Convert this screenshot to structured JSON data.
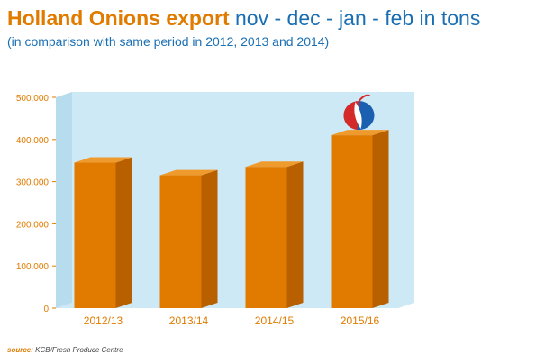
{
  "header": {
    "title_bold": "Holland Onions export",
    "title_rest": "nov - dec - jan - feb in tons",
    "subtitle": "(in comparison with same period in 2012, 2013 and 2014)"
  },
  "source": {
    "label": "source:",
    "text": "KCB/Fresh Produce Centre"
  },
  "colors": {
    "bar_front": "#e07b00",
    "bar_side": "#b85f00",
    "bar_top": "#ef9a2c",
    "plot_bg": "#cde9f6",
    "axis_text": "#e07b00",
    "title_orange": "#e07b00",
    "title_blue": "#1a6fb3"
  },
  "icons": {
    "peak_marker": "onion-icon"
  },
  "chart_data": {
    "type": "bar",
    "categories": [
      "2012/13",
      "2013/14",
      "2014/15",
      "2015/16"
    ],
    "values": [
      345000,
      315000,
      335000,
      410000
    ],
    "ylim": [
      0,
      500000
    ],
    "y_ticks": [
      "0",
      "100.000",
      "200.000",
      "300.000",
      "400.000",
      "500.000"
    ],
    "y_tick_values": [
      0,
      100000,
      200000,
      300000,
      400000,
      500000
    ],
    "grid": false,
    "legend": "none"
  }
}
